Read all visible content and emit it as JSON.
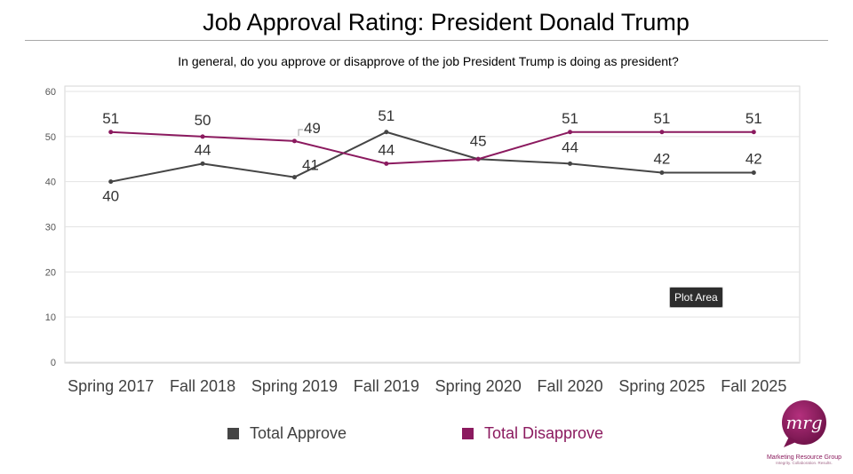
{
  "header": {
    "title": "Job Approval Rating: President Donald Trump",
    "subtitle": "In general, do you approve or disapprove of the job President Trump is doing as president?"
  },
  "chart_data": {
    "type": "line",
    "categories": [
      "Spring 2017",
      "Fall 2018",
      "Spring 2019",
      "Fall 2019",
      "Spring 2020",
      "Fall 2020",
      "Spring 2025",
      "Fall 2025"
    ],
    "series": [
      {
        "name": "Total Approve",
        "color": "#454545",
        "values": [
          40,
          44,
          41,
          51,
          45,
          44,
          42,
          42
        ]
      },
      {
        "name": "Total Disapprove",
        "color": "#8b1a5f",
        "values": [
          51,
          50,
          49,
          44,
          45,
          51,
          51,
          51
        ]
      }
    ],
    "ylim": [
      0,
      60
    ],
    "yticks": [
      "0",
      "10",
      "20",
      "30",
      "40",
      "50",
      "60"
    ],
    "grid": true,
    "legend_position": "bottom"
  },
  "tooltip": {
    "label": "Plot Area"
  },
  "logo": {
    "monogram": "mrg",
    "name": "Marketing Resource Group",
    "tagline": "Integrity. Collaboration. Results."
  }
}
